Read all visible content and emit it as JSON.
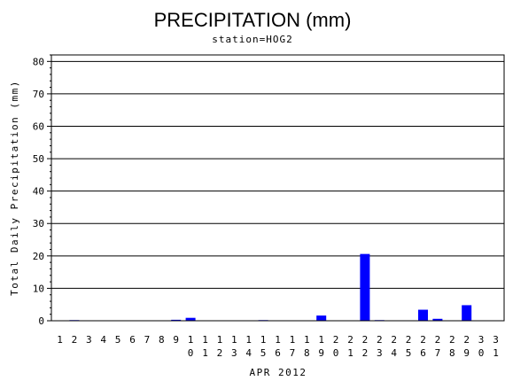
{
  "chart_data": {
    "type": "bar",
    "title": "PRECIPITATION (mm)",
    "subtitle": "station=HOG2",
    "xlabel": "APR 2012",
    "ylabel": "Total Daily Precipitation (mm)",
    "ylim": [
      0,
      82
    ],
    "yticks": [
      0,
      10,
      20,
      30,
      40,
      50,
      60,
      70,
      80
    ],
    "grid": true,
    "categories": [
      "1",
      "2",
      "3",
      "4",
      "5",
      "6",
      "7",
      "8",
      "9",
      "10",
      "11",
      "12",
      "13",
      "14",
      "15",
      "16",
      "17",
      "18",
      "19",
      "20",
      "21",
      "22",
      "23",
      "24",
      "25",
      "26",
      "27",
      "28",
      "29",
      "30",
      "31"
    ],
    "values": [
      0,
      0.2,
      0,
      0,
      0,
      0,
      0,
      0,
      0.3,
      0.9,
      0,
      0,
      0,
      0,
      0.2,
      0,
      0,
      0,
      1.6,
      0,
      0,
      20.6,
      0.2,
      0,
      0,
      3.4,
      0.6,
      0,
      4.8,
      0,
      0
    ],
    "bar_color": "#0000ff"
  }
}
